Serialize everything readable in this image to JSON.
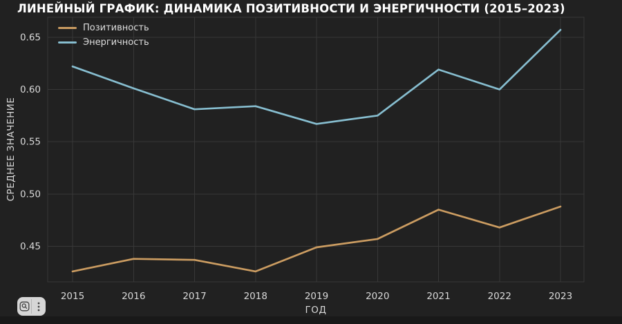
{
  "title": "ЛИНЕЙНЫЙ ГРАФИК: ДИНАМИКА ПОЗИТИВНОСТИ И ЭНЕРГИЧНОСТИ (2015–2023)",
  "chart_data": {
    "type": "line",
    "x": [
      2015,
      2016,
      2017,
      2018,
      2019,
      2020,
      2021,
      2022,
      2023
    ],
    "series": [
      {
        "name": "Позитивность",
        "color": "#cb9c61",
        "values": [
          0.426,
          0.438,
          0.437,
          0.426,
          0.449,
          0.457,
          0.485,
          0.468,
          0.488
        ]
      },
      {
        "name": "Энергичность",
        "color": "#87bed0",
        "values": [
          0.622,
          0.601,
          0.581,
          0.584,
          0.567,
          0.575,
          0.619,
          0.6,
          0.657
        ]
      }
    ],
    "xlabel": "ГОД",
    "ylabel": "СРЕДНЕЕ ЗНАЧЕНИЕ",
    "yticks": [
      "0.45",
      "0.50",
      "0.55",
      "0.60",
      "0.65"
    ],
    "ytick_values": [
      0.45,
      0.5,
      0.55,
      0.6,
      0.65
    ],
    "ylim": [
      0.416,
      0.669
    ],
    "grid": true,
    "legend_position": "top-left"
  },
  "toolbar": {
    "buttons": [
      {
        "icon": "magnifier-icon"
      },
      {
        "icon": "kebab-menu-icon"
      }
    ]
  },
  "colors": {
    "background": "#212121",
    "bottom_strip": "#191919",
    "grid": "#383838",
    "tick_label": "#d9d9d9",
    "title": "#ffffff",
    "toolbar_bg": "#d6d6d6",
    "toolbar_icon": "#3f3f3f"
  }
}
